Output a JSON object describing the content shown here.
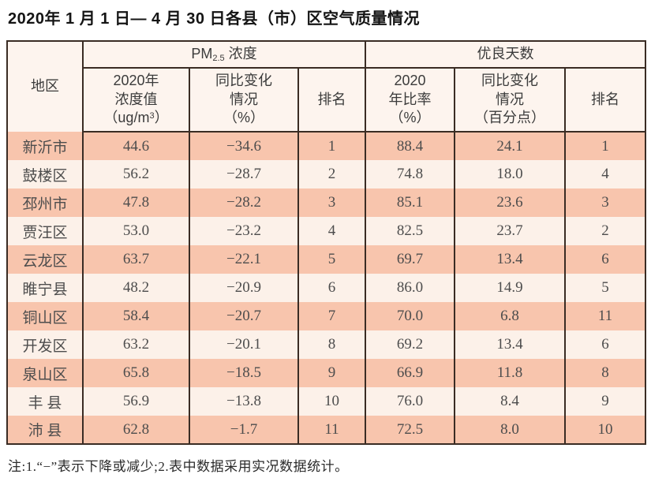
{
  "title": "2020年 1 月 1 日— 4 月 30 日各县（市）区空气质量情况",
  "note": "注:1.“−”表示下降或减少;2.表中数据采用实况数据统计。",
  "colors": {
    "border": "#3a2c24",
    "row_salmon": "#f8c5ad",
    "row_light": "#fcf1e9",
    "header_bg": "#fdf4ee"
  },
  "table": {
    "region_header": "地区",
    "pm_group": {
      "prefix": "PM",
      "sub": "2.5",
      "suffix": " 浓度"
    },
    "good_group_label": "优良天数",
    "sub_headers": {
      "pm_value": {
        "line1": "2020年",
        "line2": "浓度值",
        "line3_pre": "（ug/m",
        "line3_sup": "3",
        "line3_post": "）"
      },
      "pm_change": {
        "line1": "同比变化",
        "line2": "情况",
        "line3": "（%）"
      },
      "pm_rank": "排名",
      "good_ratio": {
        "line1": "2020",
        "line2": "年比率",
        "line3": "（%）"
      },
      "good_change": {
        "line1": "同比变化",
        "line2": "情况",
        "line3": "（百分点）"
      },
      "good_rank": "排名"
    },
    "rows": [
      {
        "region": "新沂市",
        "pm_value": "44.6",
        "pm_change": "−34.6",
        "pm_rank": "1",
        "ratio": "88.4",
        "ratio_change": "24.1",
        "good_rank": "1"
      },
      {
        "region": "鼓楼区",
        "pm_value": "56.2",
        "pm_change": "−28.7",
        "pm_rank": "2",
        "ratio": "74.8",
        "ratio_change": "18.0",
        "good_rank": "4"
      },
      {
        "region": "邳州市",
        "pm_value": "47.8",
        "pm_change": "−28.2",
        "pm_rank": "3",
        "ratio": "85.1",
        "ratio_change": "23.6",
        "good_rank": "3"
      },
      {
        "region": "贾汪区",
        "pm_value": "53.0",
        "pm_change": "−23.2",
        "pm_rank": "4",
        "ratio": "82.5",
        "ratio_change": "23.7",
        "good_rank": "2"
      },
      {
        "region": "云龙区",
        "pm_value": "63.7",
        "pm_change": "−22.1",
        "pm_rank": "5",
        "ratio": "69.7",
        "ratio_change": "13.4",
        "good_rank": "6"
      },
      {
        "region": "睢宁县",
        "pm_value": "48.2",
        "pm_change": "−20.9",
        "pm_rank": "6",
        "ratio": "86.0",
        "ratio_change": "14.9",
        "good_rank": "5"
      },
      {
        "region": "铜山区",
        "pm_value": "58.4",
        "pm_change": "−20.7",
        "pm_rank": "7",
        "ratio": "70.0",
        "ratio_change": "6.8",
        "good_rank": "11"
      },
      {
        "region": "开发区",
        "pm_value": "63.2",
        "pm_change": "−20.1",
        "pm_rank": "8",
        "ratio": "69.2",
        "ratio_change": "13.4",
        "good_rank": "6"
      },
      {
        "region": "泉山区",
        "pm_value": "65.8",
        "pm_change": "−18.5",
        "pm_rank": "9",
        "ratio": "66.9",
        "ratio_change": "11.8",
        "good_rank": "8"
      },
      {
        "region": "丰 县",
        "pm_value": "56.9",
        "pm_change": "−13.8",
        "pm_rank": "10",
        "ratio": "76.0",
        "ratio_change": "8.4",
        "good_rank": "9"
      },
      {
        "region": "沛 县",
        "pm_value": "62.8",
        "pm_change": "−1.7",
        "pm_rank": "11",
        "ratio": "72.5",
        "ratio_change": "8.0",
        "good_rank": "10"
      }
    ]
  }
}
